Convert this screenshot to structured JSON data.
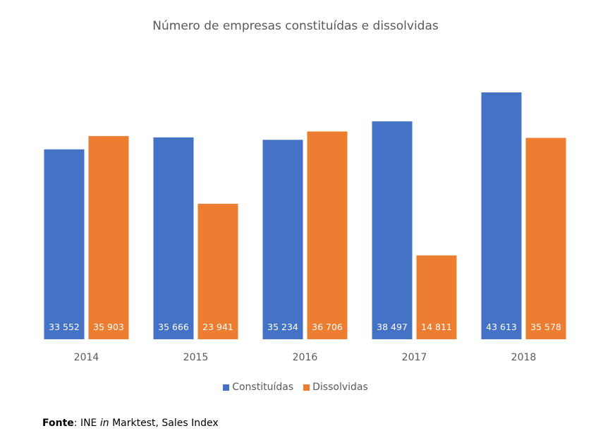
{
  "chart_data": {
    "type": "bar",
    "title": "Número de empresas constituídas e dissolvidas",
    "categories": [
      "2014",
      "2015",
      "2016",
      "2017",
      "2018"
    ],
    "series": [
      {
        "name": "Constituídas",
        "color": "#4472C4",
        "values": [
          33552,
          35666,
          35234,
          38497,
          43613
        ],
        "labels": [
          "33 552",
          "35 666",
          "35 234",
          "38 497",
          "43 613"
        ]
      },
      {
        "name": "Dissolvidas",
        "color": "#ED7D31",
        "values": [
          35903,
          23941,
          36706,
          14811,
          35578
        ],
        "labels": [
          "35 903",
          "23 941",
          "36 706",
          "14 811",
          "35 578"
        ]
      }
    ],
    "xlabel": "",
    "ylabel": "",
    "ylim": [
      0,
      45000
    ],
    "legend": "bottom",
    "grid": false
  },
  "source": {
    "label": "Fonte",
    "text_pre": ": INE ",
    "text_italic": "in",
    "text_post": " Marktest, Sales Index"
  }
}
